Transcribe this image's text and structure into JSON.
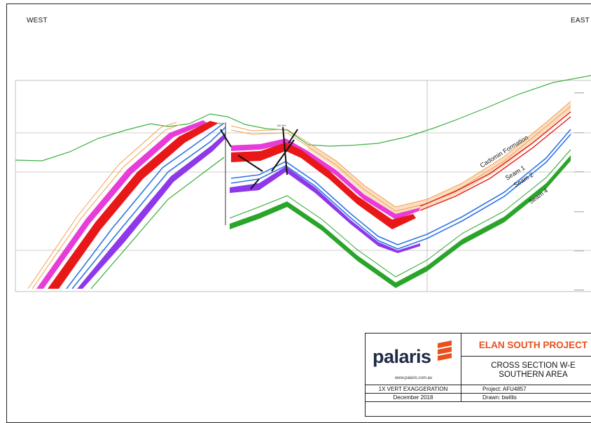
{
  "header": {
    "west_label": "WEST",
    "east_label": "EAST"
  },
  "section": {
    "formation_labels": [
      {
        "text": "Cadomin Formation",
        "color": "#1a1a1a"
      },
      {
        "text": "Seam 1",
        "color": "#1a1a1a"
      },
      {
        "text": "Seam 2",
        "color": "#1a1a1a"
      },
      {
        "text": "Seam 4",
        "color": "#1a1a1a"
      }
    ],
    "colors": {
      "topography": "#3cb043",
      "cadomin": "#f0a050",
      "seam_magenta": "#e83cd8",
      "seam_red": "#e81818",
      "seam_blue": "#2f74e6",
      "seam_purple": "#8e38ea",
      "seam_green": "#2aa52a",
      "borehole": "#111111"
    }
  },
  "title_block": {
    "company": "palaris",
    "website": "www.palaris.com.au",
    "project_name": "ELAN SOUTH PROJECT",
    "drawing_title_1": "CROSS SECTION W-E",
    "drawing_title_2": "SOUTHERN AREA",
    "exaggeration": "1X VERT EXAGGERATION",
    "date": "December 2018",
    "project_code": "Project: AFU4857",
    "drawn_by": "Drawn:  bwillis",
    "accent_color": "#e8501e",
    "logo_color": "#1f2a44"
  }
}
